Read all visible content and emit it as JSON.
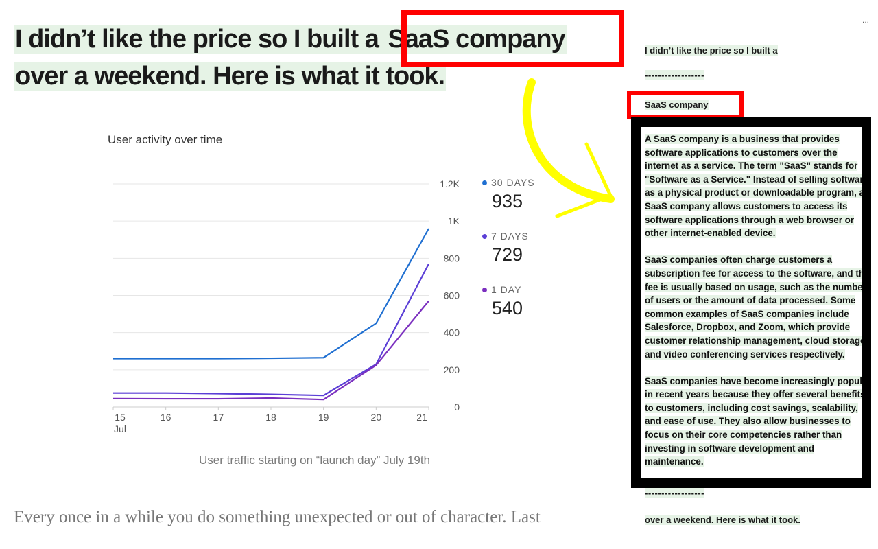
{
  "headline": {
    "part1": "I didn’t like the price so I built a ",
    "part2": "SaaS company",
    "line2": "over a weekend. Here is what it took."
  },
  "chart": {
    "title": "User activity over time",
    "caption": "User traffic starting on “launch day” July 19th",
    "y_ticks": [
      "1.2K",
      "1K",
      "800",
      "600",
      "400",
      "200",
      "0"
    ],
    "x_ticks": [
      "15",
      "16",
      "17",
      "18",
      "19",
      "20",
      "21"
    ],
    "x_first_sub": "Jul",
    "legend": [
      {
        "label": "30 DAYS",
        "value": "935",
        "color": "#1f6fd1"
      },
      {
        "label": "7 DAYS",
        "value": "729",
        "color": "#5b3fd6"
      },
      {
        "label": "1 DAY",
        "value": "540",
        "color": "#7b2fbf"
      }
    ]
  },
  "chart_data": {
    "type": "line",
    "title": "User activity over time",
    "x": [
      15,
      16,
      17,
      18,
      19,
      20,
      21
    ],
    "xlabel": "",
    "ylabel": "",
    "ylim": [
      0,
      1200
    ],
    "y_axis_side": "right",
    "grid": true,
    "legend_position": "right",
    "series": [
      {
        "name": "30 DAYS",
        "color": "#1f6fd1",
        "values": [
          260,
          260,
          260,
          262,
          265,
          450,
          960
        ]
      },
      {
        "name": "7 DAYS",
        "color": "#5b3fd6",
        "values": [
          75,
          75,
          72,
          68,
          62,
          230,
          770
        ]
      },
      {
        "name": "1 DAY",
        "color": "#7b2fbf",
        "values": [
          45,
          44,
          44,
          48,
          40,
          225,
          570
        ]
      }
    ]
  },
  "body": {
    "text": "Every once in a while you do something unexpected or out of character. Last"
  },
  "right_panel": {
    "menu": "...",
    "title": "I didn’t like the price so I built a",
    "separator": "------------------",
    "heading": "SaaS company",
    "paragraphs": [
      "A SaaS company is a business that provides software applications to customers over the internet as a service. The term \"SaaS\" stands for \"Software as a Service.\" Instead of selling software as a physical product or downloadable program, a SaaS company allows customers to access its software applications through a web browser or other internet-enabled device.",
      "SaaS companies often charge customers a subscription fee for access to the software, and the fee is usually based on usage, such as the number of users or the amount of data processed. Some common examples of SaaS companies include Salesforce, Dropbox, and Zoom, which provide customer relationship management, cloud storage, and video conferencing services respectively.",
      "SaaS companies have become increasingly popular in recent years because they offer several benefits to customers, including cost savings, scalability, and ease of use. They also allow businesses to focus on their core competencies rather than investing in software development and maintenance."
    ],
    "end": "over a weekend. Here is what it took."
  },
  "colors": {
    "highlight": "#e6f3e6",
    "annotation_red": "#ff0000",
    "annotation_yellow": "#ffff00",
    "annotation_black": "#000000"
  }
}
